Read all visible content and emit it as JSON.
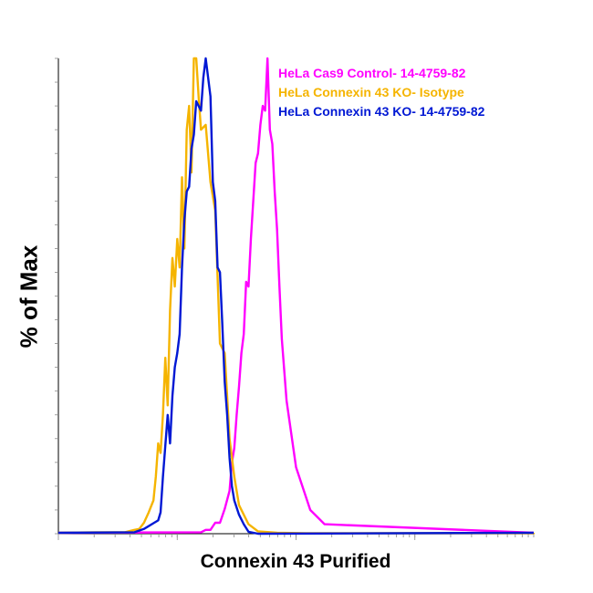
{
  "chart_data": {
    "type": "line",
    "title": "",
    "xlabel": "Connexin 43 Purified",
    "ylabel": "% of Max",
    "xscale": "log",
    "ylim": [
      0,
      100
    ],
    "grid": false,
    "legend": "top-right",
    "series": [
      {
        "name": "HeLa Cas9 Control- 14-4759-82",
        "color": "#ff00ff",
        "x": [
          0.3,
          0.31,
          0.32,
          0.33,
          0.34,
          0.35,
          0.36,
          0.365,
          0.37,
          0.375,
          0.38,
          0.385,
          0.39,
          0.395,
          0.4,
          0.405,
          0.41,
          0.415,
          0.42,
          0.425,
          0.43,
          0.435,
          0.44,
          0.445,
          0.45,
          0.455,
          0.46,
          0.465,
          0.47,
          0.48,
          0.5,
          0.53,
          0.56
        ],
        "y": [
          0.3,
          0.8,
          0.8,
          2.3,
          2.3,
          5.2,
          9,
          15,
          18,
          25,
          31,
          38,
          42,
          53,
          52,
          62,
          70,
          78,
          80,
          86,
          90,
          89,
          100,
          85,
          82,
          72,
          64,
          52,
          41,
          28,
          14,
          5,
          2
        ]
      },
      {
        "name": "HeLa Connexin 43 KO- Isotype",
        "color": "#f5b400",
        "x": [
          0.08,
          0.1,
          0.12,
          0.14,
          0.16,
          0.17,
          0.18,
          0.19,
          0.2,
          0.205,
          0.21,
          0.215,
          0.22,
          0.225,
          0.23,
          0.235,
          0.24,
          0.245,
          0.25,
          0.255,
          0.26,
          0.265,
          0.27,
          0.275,
          0.28,
          0.285,
          0.29,
          0.295,
          0.3,
          0.31,
          0.32,
          0.33,
          0.34,
          0.35,
          0.36,
          0.37,
          0.38,
          0.4,
          0.42,
          0.46,
          0.52,
          0.6,
          0.7,
          0.8,
          0.9,
          1.0
        ],
        "y": [
          0.3,
          0.3,
          0.3,
          0.3,
          0.8,
          1.0,
          2.3,
          4.5,
          7,
          12,
          19,
          17,
          25,
          37,
          27,
          47,
          58,
          52,
          62,
          56,
          75,
          60,
          85,
          90,
          76,
          100,
          100,
          92,
          85,
          86,
          74,
          68,
          40,
          38,
          20,
          12,
          6,
          2,
          0.5,
          0.2,
          0.1,
          0.1,
          0.1,
          0.1,
          0.1,
          0.1
        ]
      },
      {
        "name": "HeLa Connexin 43 KO- 14-4759-82",
        "color": "#0018d4",
        "x": [
          0.16,
          0.18,
          0.2,
          0.21,
          0.215,
          0.22,
          0.23,
          0.235,
          0.24,
          0.245,
          0.25,
          0.255,
          0.26,
          0.265,
          0.27,
          0.275,
          0.28,
          0.285,
          0.29,
          0.3,
          0.305,
          0.31,
          0.32,
          0.325,
          0.33,
          0.335,
          0.34,
          0.345,
          0.35,
          0.355,
          0.36,
          0.365,
          0.37,
          0.38,
          0.39,
          0.4,
          0.42
        ],
        "y": [
          0.3,
          1.0,
          2.2,
          2.8,
          4.5,
          12,
          25,
          19,
          29,
          35,
          38,
          42,
          56,
          66,
          72,
          73,
          81,
          84,
          91,
          89,
          96,
          100,
          92,
          74,
          70,
          56,
          55,
          44,
          32,
          25,
          16,
          10,
          7,
          4,
          2,
          0.4,
          0
        ]
      }
    ]
  }
}
